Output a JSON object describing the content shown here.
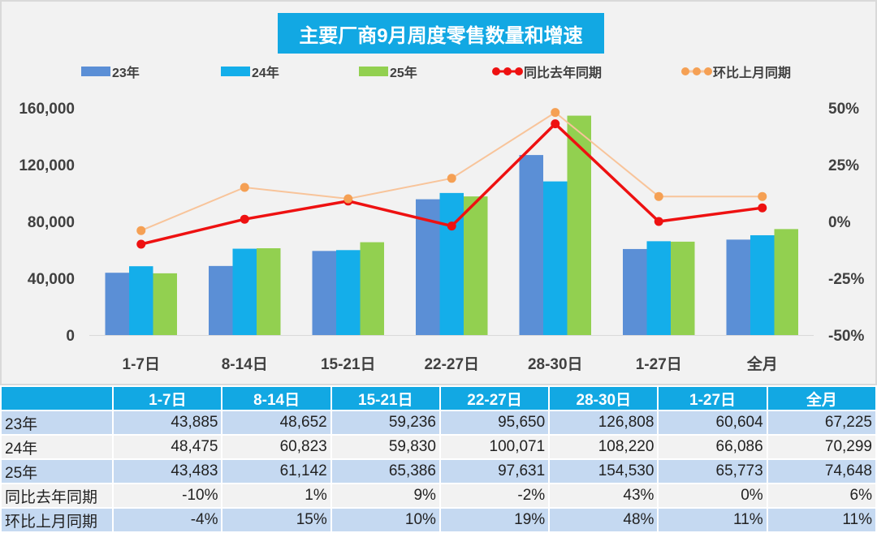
{
  "chart_data": {
    "type": "bar",
    "title": "主要厂商9月周度零售数量和增速",
    "categories": [
      "1-7日",
      "8-14日",
      "15-21日",
      "22-27日",
      "28-30日",
      "1-27日",
      "全月"
    ],
    "series": [
      {
        "name": "23年",
        "type": "bar",
        "axis": "left",
        "color": "#5b8fd6",
        "values": [
          43885,
          48652,
          59236,
          95650,
          126808,
          60604,
          67225
        ]
      },
      {
        "name": "24年",
        "type": "bar",
        "axis": "left",
        "color": "#14aeea",
        "values": [
          48475,
          60823,
          59830,
          100071,
          108220,
          66086,
          70299
        ]
      },
      {
        "name": "25年",
        "type": "bar",
        "axis": "left",
        "color": "#92d050",
        "values": [
          43483,
          61142,
          65386,
          97631,
          154530,
          65773,
          74648
        ]
      },
      {
        "name": "同比去年同期",
        "type": "line",
        "axis": "right",
        "color": "#ee1111",
        "values": [
          -10,
          1,
          9,
          -2,
          43,
          0,
          6
        ]
      },
      {
        "name": "环比上月同期",
        "type": "line",
        "axis": "right",
        "color": "#f8c49a",
        "marker_color": "#f5a054",
        "values": [
          -4,
          15,
          10,
          19,
          48,
          11,
          11
        ]
      }
    ],
    "ylim": [
      0,
      160000
    ],
    "yticks": [
      "0",
      "40,000",
      "80,000",
      "120,000",
      "160,000"
    ],
    "y2lim": [
      -50,
      50
    ],
    "y2ticks": [
      "-50%",
      "-25%",
      "0%",
      "25%",
      "50%"
    ],
    "legend": "top",
    "grid": false
  },
  "table": {
    "header": [
      "",
      "1-7日",
      "8-14日",
      "15-21日",
      "22-27日",
      "28-30日",
      "1-27日",
      "全月"
    ],
    "rows": [
      [
        "23年",
        "43,885",
        "48,652",
        "59,236",
        "95,650",
        "126,808",
        "60,604",
        "67,225"
      ],
      [
        "24年",
        "48,475",
        "60,823",
        "59,830",
        "100,071",
        "108,220",
        "66,086",
        "70,299"
      ],
      [
        "25年",
        "43,483",
        "61,142",
        "65,386",
        "97,631",
        "154,530",
        "65,773",
        "74,648"
      ],
      [
        "同比去年同期",
        "-10%",
        "1%",
        "9%",
        "-2%",
        "43%",
        "0%",
        "6%"
      ],
      [
        "环比上月同期",
        "-4%",
        "15%",
        "10%",
        "19%",
        "48%",
        "11%",
        "11%"
      ]
    ]
  }
}
